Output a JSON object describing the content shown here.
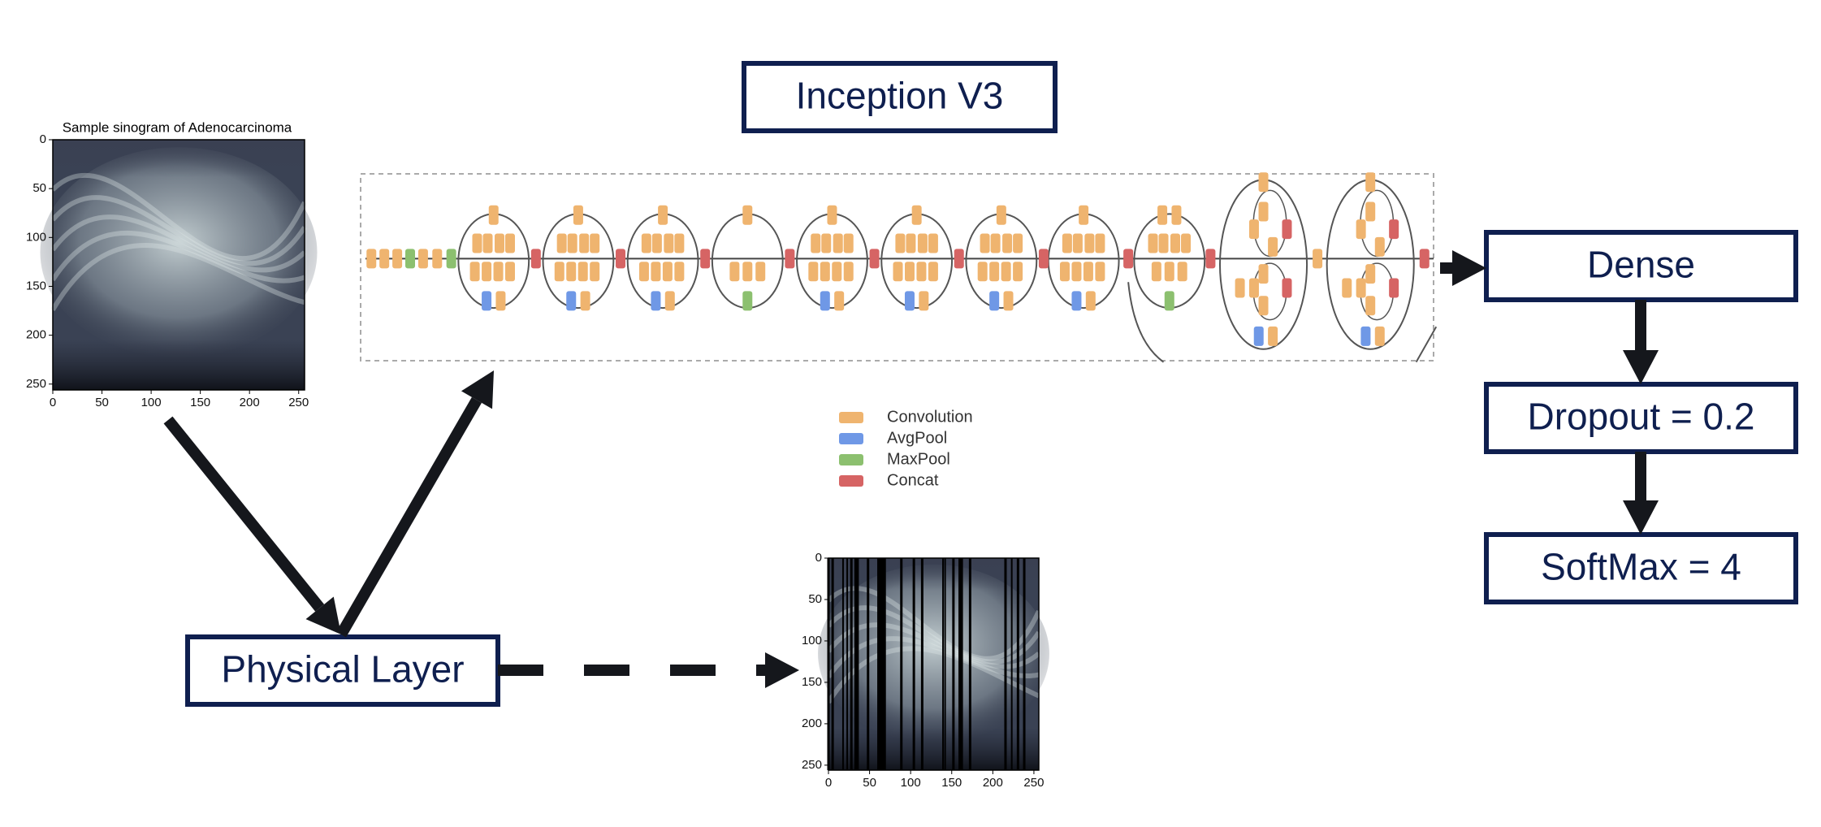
{
  "nodes": [
    {
      "label": "Inception V3"
    },
    {
      "label": "Dense"
    },
    {
      "label": "Dropout = 0.2"
    },
    {
      "label": "SoftMax = 4"
    },
    {
      "label": "Physical Layer"
    }
  ],
  "sinogram": {
    "title": "Sample sinogram of Adenocarcinoma",
    "xlim": [
      0,
      256
    ],
    "ylim": [
      0,
      256
    ],
    "xticks": [
      0,
      50,
      100,
      150,
      200,
      250
    ],
    "yticks": [
      0,
      50,
      100,
      150,
      200,
      250
    ]
  },
  "masked_sinogram": {
    "xlim": [
      0,
      256
    ],
    "ylim": [
      0,
      256
    ],
    "xticks": [
      0,
      50,
      100,
      150,
      200,
      250
    ],
    "yticks": [
      0,
      50,
      100,
      150,
      200,
      250
    ]
  },
  "legend": [
    {
      "label": "Convolution",
      "color": "#efb46f"
    },
    {
      "label": "AvgPool",
      "color": "#6f98e6"
    },
    {
      "label": "MaxPool",
      "color": "#8cc06f"
    },
    {
      "label": "Concat",
      "color": "#d66464"
    }
  ]
}
